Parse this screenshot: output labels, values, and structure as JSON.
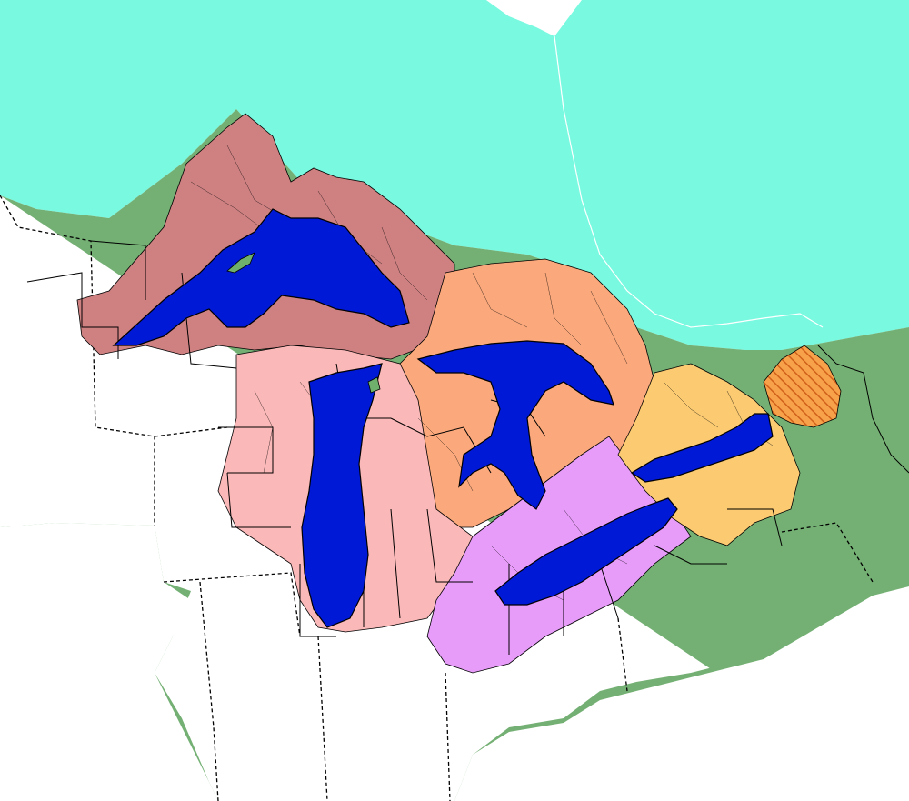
{
  "map": {
    "colors": {
      "background": "#ffffff",
      "canada": "#79f9e0",
      "us_states": "#74b074",
      "superior_basin": "#cf8182",
      "michigan_basin": "#fbb8b8",
      "huron_basin_east": "#fba97c",
      "huron_basin_west": "#f0a872",
      "erie_basin": "#e79cfa",
      "ontario_basin": "#fbca71",
      "st_lawrence_hatched": "#f7a24a",
      "hatch_stroke": "#d0601a",
      "lakes": "#0019d6",
      "islands": "#6fb06c",
      "lines": "#000000"
    },
    "regions": [
      "canada",
      "us-states",
      "lake-superior-basin",
      "lake-michigan-basin",
      "lake-huron-basin",
      "lake-erie-basin",
      "lake-ontario-basin",
      "st-lawrence-basin"
    ],
    "lakes": [
      "lake-superior",
      "lake-michigan",
      "lake-huron",
      "lake-erie",
      "lake-ontario"
    ]
  }
}
